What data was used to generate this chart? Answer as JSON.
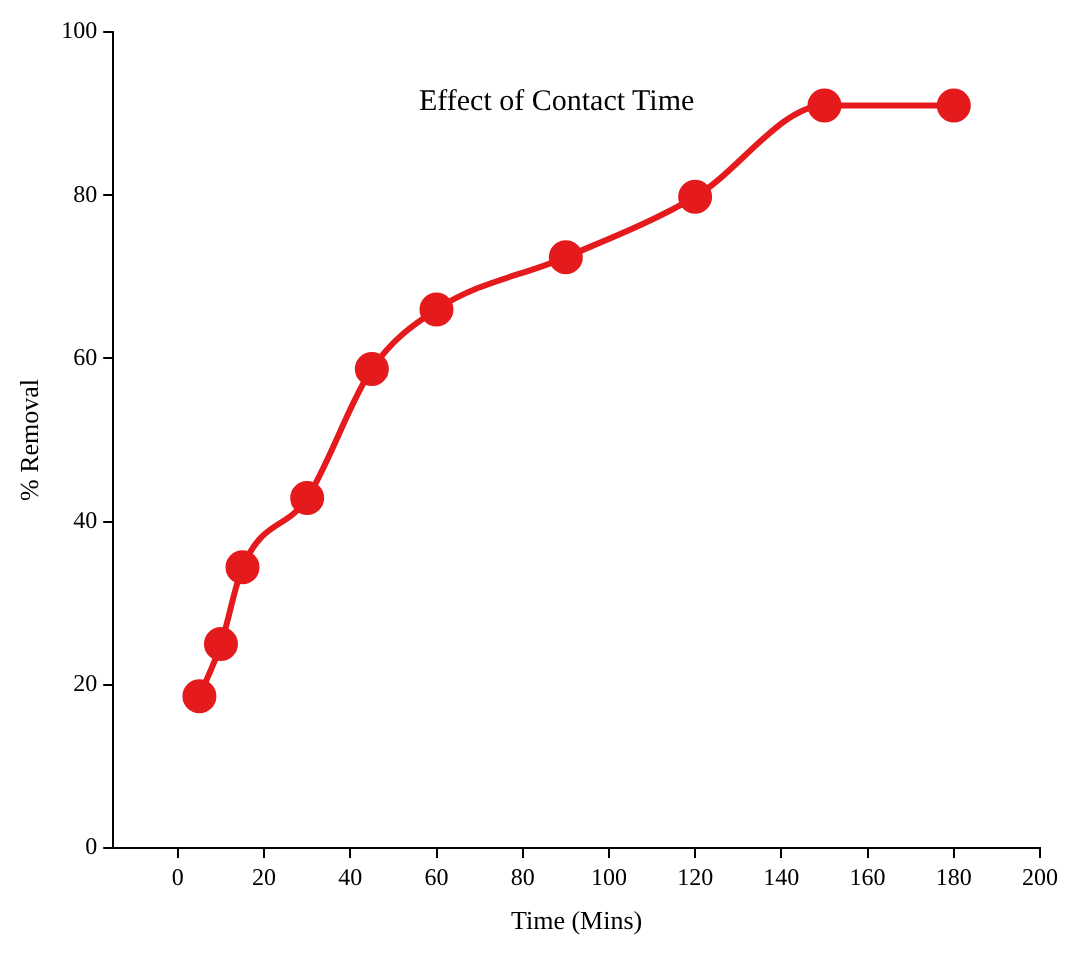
{
  "chart_data": {
    "type": "line",
    "title": "Effect of Contact Time",
    "xlabel": "Time (Mins)",
    "ylabel": "% Removal",
    "x": [
      5,
      10,
      15,
      30,
      45,
      60,
      90,
      120,
      150,
      180
    ],
    "series": [
      {
        "color": "#e41a1c",
        "values": [
          18.6,
          25,
          34.4,
          42.9,
          58.7,
          66,
          72.4,
          79.8,
          91,
          91
        ]
      }
    ],
    "xlim": [
      -15,
      200
    ],
    "xticks": [
      0,
      20,
      40,
      60,
      80,
      100,
      120,
      140,
      160,
      180,
      200
    ],
    "ylim": [
      0,
      100
    ],
    "yticks": [
      0,
      20,
      40,
      60,
      80,
      100
    ],
    "grid": false,
    "legend": false,
    "marker": "circle",
    "line_style": "solid"
  }
}
